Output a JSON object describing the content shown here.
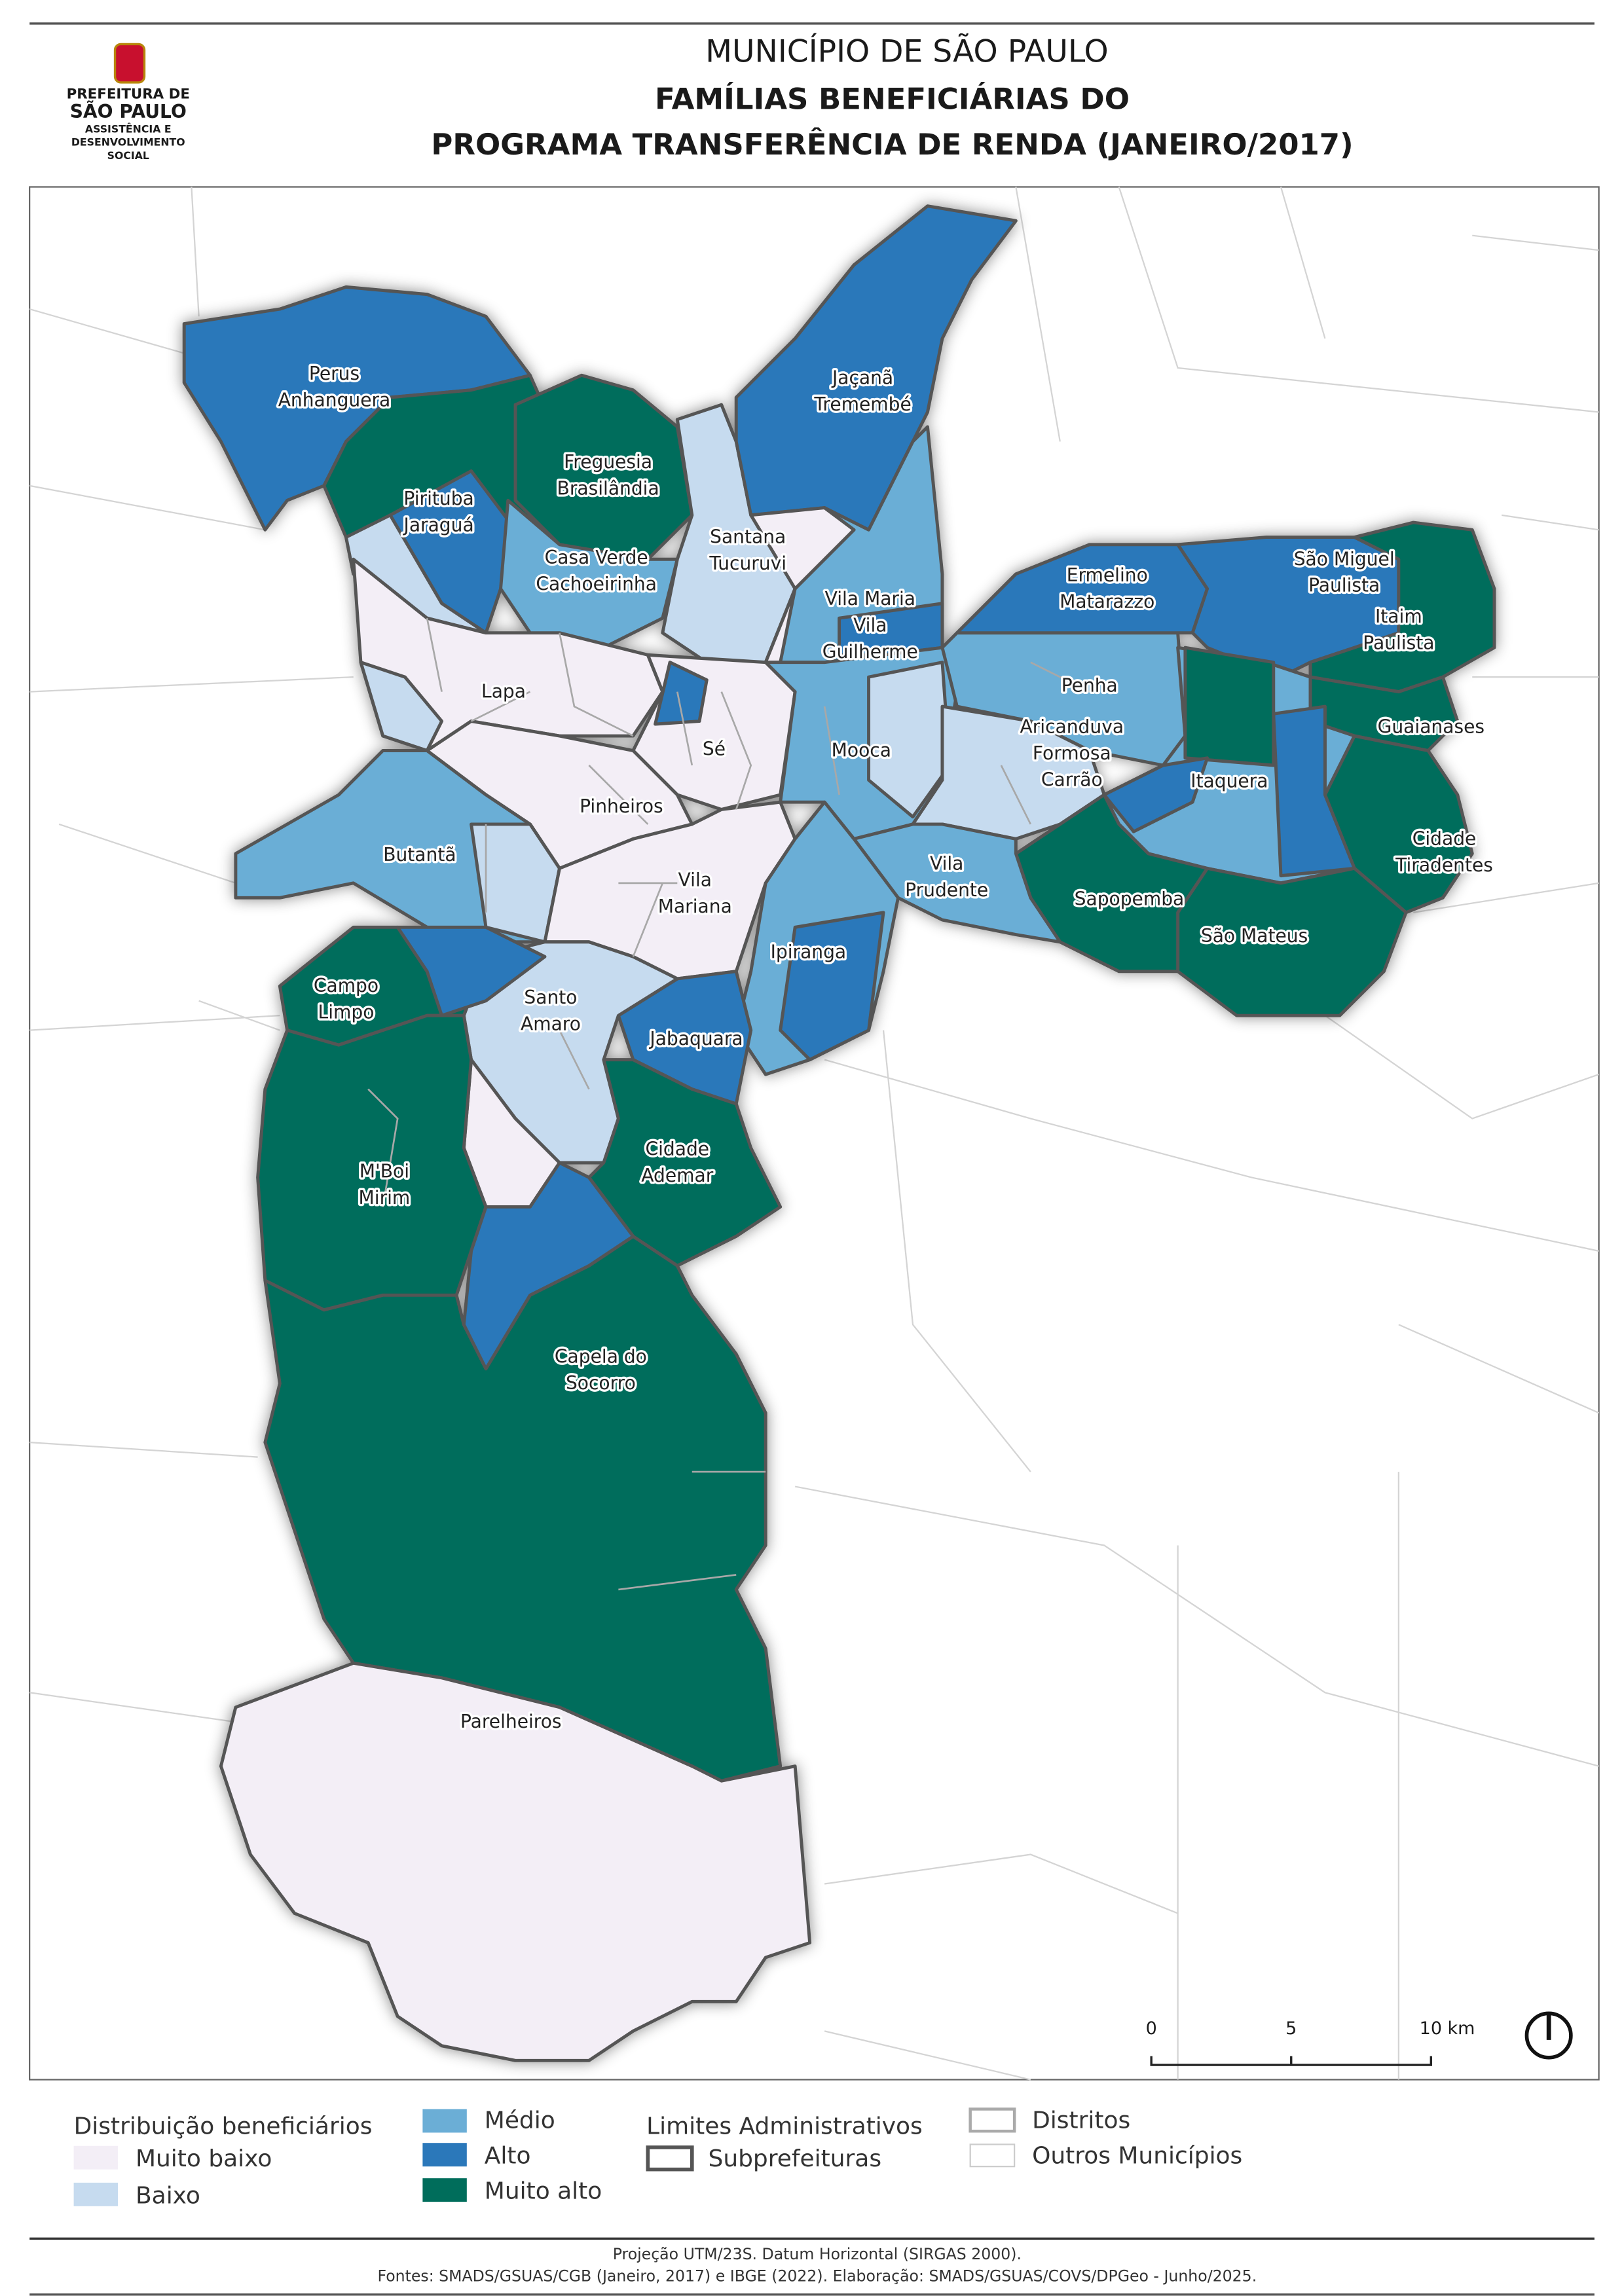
{
  "header": {
    "line1": "MUNICÍPIO DE SÃO PAULO",
    "line2": "FAMÍLIAS BENEFICIÁRIAS DO",
    "line3": "PROGRAMA TRANSFERÊNCIA DE RENDA (JANEIRO/2017)"
  },
  "logo": {
    "l1": "PREFEITURA DE",
    "l2": "SÃO PAULO",
    "l3": "ASSISTÊNCIA E",
    "l4": "DESENVOLVIMENTO",
    "l5": "SOCIAL"
  },
  "colors": {
    "muito_baixo": "#f3eef6",
    "baixo": "#c6dbef",
    "medio": "#6baed6",
    "alto": "#2b78ba",
    "muito_alto": "#006d5b"
  },
  "map": {
    "labels": {
      "perus": [
        "Perus",
        "Anhanguera"
      ],
      "pirituba": [
        "Pirituba",
        "Jaraguá"
      ],
      "freguesia": [
        "Freguesia",
        "Brasilândia"
      ],
      "casaverde": [
        "Casa Verde",
        "Cachoeirinha"
      ],
      "santana": [
        "Santana",
        "Tucuruvi"
      ],
      "jacana": [
        "Jaçanã",
        "Tremembé"
      ],
      "vilamaria": [
        "Vila Maria",
        "Vila",
        "Guilherme"
      ],
      "lapa": "Lapa",
      "se": "Sé",
      "mooca": "Mooca",
      "penha": "Penha",
      "ermelino": [
        "Ermelino",
        "Matarazzo"
      ],
      "saomiguel": [
        "São Miguel",
        "Paulista"
      ],
      "itaim": [
        "Itaim",
        "Paulista"
      ],
      "guaianases": "Guaianases",
      "aricanduva": [
        "Aricanduva",
        "Formosa",
        "Carrão"
      ],
      "itaquera": "Itaquera",
      "tiradentes": [
        "Cidade",
        "Tiradentes"
      ],
      "pinheiros": "Pinheiros",
      "butanta": "Butantã",
      "vilamariana": [
        "Vila",
        "Mariana"
      ],
      "vilaprudente": [
        "Vila",
        "Prudente"
      ],
      "sapopemba": "Sapopemba",
      "saomateus": "São Mateus",
      "ipiranga": "Ipiranga",
      "campolimpo": [
        "Campo",
        "Limpo"
      ],
      "santoamaro": [
        "Santo",
        "Amaro"
      ],
      "jabaquara": "Jabaquara",
      "ademar": [
        "Cidade",
        "Ademar"
      ],
      "mboi": [
        "M'Boi",
        "Mirim"
      ],
      "capela": [
        "Capela do",
        "Socorro"
      ],
      "parelheiros": "Parelheiros"
    },
    "scale_bar": {
      "ticks": [
        "0",
        "5",
        "10 km"
      ]
    },
    "north_icon": "north-arrow-icon"
  },
  "legend": {
    "title": "Distribuição beneficiários",
    "classes": [
      "Muito baixo",
      "Baixo",
      "Médio",
      "Alto",
      "Muito alto"
    ],
    "limits_title": "Limites Administrativos",
    "subprefeituras": "Subprefeituras",
    "distritos": "Distritos",
    "outros": "Outros Municípios"
  },
  "footer": {
    "line1": "Projeção UTM/23S. Datum Horizontal (SIRGAS 2000).",
    "line2": "Fontes: SMADS/GSUAS/CGB (Janeiro, 2017) e IBGE (2022). Elaboração: SMADS/GSUAS/COVS/DPGeo - Junho/2025."
  }
}
